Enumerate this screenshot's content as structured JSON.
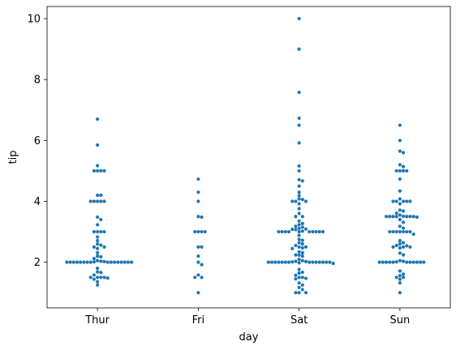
{
  "chart_data": {
    "type": "scatter",
    "subtype": "swarm",
    "xlabel": "day",
    "ylabel": "tip",
    "categories": [
      "Thur",
      "Fri",
      "Sat",
      "Sun"
    ],
    "ylim": [
      0.5,
      10.4
    ],
    "yticks": [
      2,
      4,
      6,
      8,
      10
    ],
    "grid": false,
    "marker_color": "#1f77b4",
    "series": [
      {
        "category": "Thur",
        "values": [
          6.7,
          5.85,
          5.17,
          5.0,
          5.0,
          5.0,
          5.0,
          4.2,
          4.2,
          4.0,
          4.0,
          4.0,
          4.0,
          4.0,
          3.48,
          3.4,
          3.23,
          3.0,
          3.0,
          3.0,
          3.0,
          2.83,
          2.71,
          2.6,
          2.56,
          2.5,
          2.5,
          2.45,
          2.31,
          2.2,
          2.18,
          2.12,
          2.05,
          2.03,
          2.02,
          2.01,
          2.0,
          2.0,
          2.0,
          2.0,
          2.0,
          2.0,
          2.0,
          2.0,
          2.0,
          2.0,
          2.0,
          2.0,
          2.0,
          2.0,
          2.0,
          2.0,
          1.8,
          1.68,
          1.66,
          1.58,
          1.5,
          1.5,
          1.5,
          1.5,
          1.48,
          1.44,
          1.36,
          1.25
        ]
      },
      {
        "category": "Fri",
        "values": [
          4.73,
          4.3,
          4.0,
          3.5,
          3.48,
          3.0,
          3.0,
          3.0,
          3.0,
          2.5,
          2.5,
          2.2,
          2.0,
          1.92,
          1.58,
          1.5,
          1.5,
          1.0
        ]
      },
      {
        "category": "Sat",
        "values": [
          10.0,
          9.0,
          7.58,
          6.73,
          6.5,
          5.92,
          5.16,
          5.0,
          4.71,
          4.67,
          4.5,
          4.3,
          4.19,
          4.08,
          4.06,
          4.0,
          4.0,
          4.0,
          3.92,
          3.76,
          3.6,
          3.5,
          3.5,
          3.35,
          3.27,
          3.23,
          3.18,
          3.15,
          3.11,
          3.09,
          3.08,
          3.07,
          3.02,
          3.0,
          3.0,
          3.0,
          3.0,
          3.0,
          3.0,
          3.0,
          3.0,
          3.0,
          3.0,
          2.88,
          2.75,
          2.72,
          2.64,
          2.6,
          2.55,
          2.5,
          2.5,
          2.47,
          2.45,
          2.34,
          2.31,
          2.24,
          2.23,
          2.2,
          2.09,
          2.05,
          2.03,
          2.02,
          2.01,
          2.0,
          2.0,
          2.0,
          2.0,
          2.0,
          2.0,
          2.0,
          2.0,
          2.0,
          2.0,
          2.0,
          2.0,
          2.0,
          2.0,
          1.98,
          1.96,
          1.76,
          1.67,
          1.64,
          1.57,
          1.5,
          1.5,
          1.47,
          1.45,
          1.32,
          1.25,
          1.17,
          1.1,
          1.0,
          1.0,
          1.0
        ]
      },
      {
        "category": "Sun",
        "values": [
          6.5,
          6.0,
          5.65,
          5.6,
          5.2,
          5.14,
          5.0,
          5.0,
          5.0,
          5.0,
          4.73,
          4.34,
          4.08,
          4.0,
          4.0,
          4.0,
          4.0,
          4.0,
          3.92,
          3.71,
          3.68,
          3.61,
          3.55,
          3.51,
          3.5,
          3.5,
          3.5,
          3.5,
          3.5,
          3.5,
          3.5,
          3.48,
          3.4,
          3.31,
          3.18,
          3.12,
          3.0,
          3.0,
          3.0,
          3.0,
          3.0,
          3.0,
          3.0,
          2.92,
          2.71,
          2.64,
          2.6,
          2.55,
          2.54,
          2.5,
          2.5,
          2.5,
          2.47,
          2.3,
          2.24,
          2.05,
          2.03,
          2.01,
          2.0,
          2.0,
          2.0,
          2.0,
          2.0,
          2.0,
          2.0,
          2.0,
          2.0,
          2.0,
          2.0,
          1.71,
          1.61,
          1.56,
          1.5,
          1.5,
          1.44,
          1.32,
          1.0
        ]
      }
    ]
  }
}
